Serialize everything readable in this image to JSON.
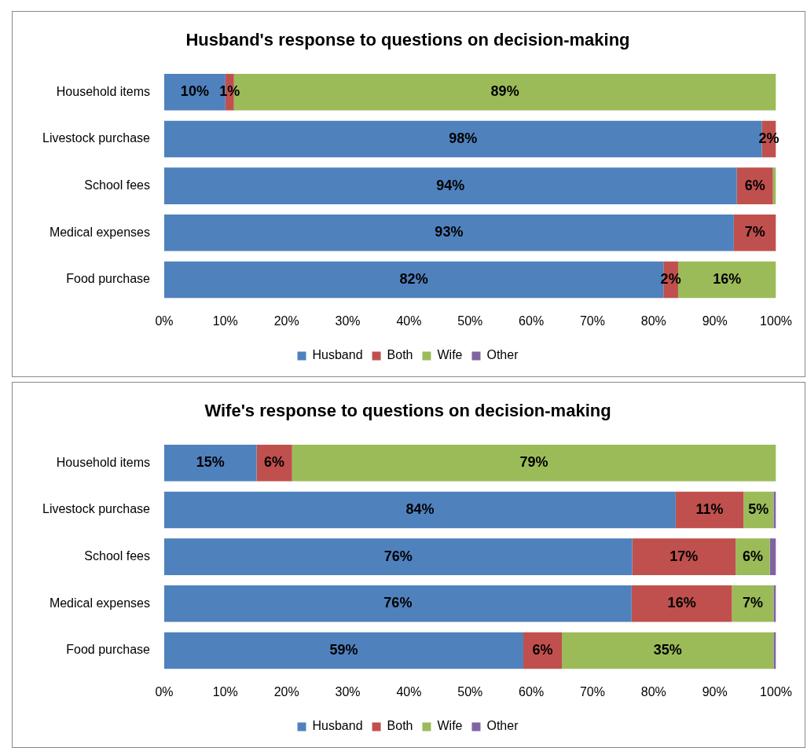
{
  "chart_data": [
    {
      "type": "bar",
      "orientation": "horizontal",
      "stacked": true,
      "title": "Husband's response to questions on decision-making",
      "categories": [
        "Household items",
        "Livestock purchase",
        "School fees",
        "Medical expenses",
        "Food purchase"
      ],
      "xlim": [
        0,
        100
      ],
      "xticks": [
        {
          "value": 0,
          "label": "0%"
        },
        {
          "value": 10,
          "label": "10%"
        },
        {
          "value": 20,
          "label": "20%"
        },
        {
          "value": 30,
          "label": "30%"
        },
        {
          "value": 40,
          "label": "40%"
        },
        {
          "value": 50,
          "label": "50%"
        },
        {
          "value": 60,
          "label": "60%"
        },
        {
          "value": 70,
          "label": "70%"
        },
        {
          "value": 80,
          "label": "80%"
        },
        {
          "value": 90,
          "label": "90%"
        },
        {
          "value": 100,
          "label": "100%"
        }
      ],
      "grid": false,
      "legend": "bottom",
      "series": [
        {
          "name": "Husband",
          "color": "#4f81bd",
          "values": [
            10,
            97.7,
            93.6,
            93.1,
            81.6
          ],
          "value_labels": [
            "10%",
            "98%",
            "94%",
            "93%",
            "82%"
          ]
        },
        {
          "name": "Both",
          "color": "#c0504d",
          "values": [
            1.4,
            2.3,
            5.9,
            6.9,
            2.4
          ],
          "value_labels": [
            "1%",
            "2%",
            "6%",
            "7%",
            "2%"
          ]
        },
        {
          "name": "Wife",
          "color": "#9bbb59",
          "values": [
            88.6,
            0,
            0.5,
            0,
            16
          ],
          "value_labels": [
            "89%",
            null,
            null,
            null,
            "16%"
          ]
        },
        {
          "name": "Other",
          "color": "#8064a2",
          "values": [
            0,
            0,
            0,
            0,
            0
          ],
          "value_labels": [
            null,
            null,
            null,
            null,
            null
          ]
        }
      ]
    },
    {
      "type": "bar",
      "orientation": "horizontal",
      "stacked": true,
      "title": "Wife's response to questions on decision-making",
      "categories": [
        "Household items",
        "Livestock purchase",
        "School fees",
        "Medical expenses",
        "Food purchase"
      ],
      "xlim": [
        0,
        100
      ],
      "xticks": [
        {
          "value": 0,
          "label": "0%"
        },
        {
          "value": 10,
          "label": "10%"
        },
        {
          "value": 20,
          "label": "20%"
        },
        {
          "value": 30,
          "label": "30%"
        },
        {
          "value": 40,
          "label": "40%"
        },
        {
          "value": 50,
          "label": "50%"
        },
        {
          "value": 60,
          "label": "60%"
        },
        {
          "value": 70,
          "label": "70%"
        },
        {
          "value": 80,
          "label": "80%"
        },
        {
          "value": 90,
          "label": "90%"
        },
        {
          "value": 100,
          "label": "100%"
        }
      ],
      "grid": false,
      "legend": "bottom",
      "series": [
        {
          "name": "Husband",
          "color": "#4f81bd",
          "values": [
            15.1,
            83.6,
            76.5,
            76.4,
            58.7
          ],
          "value_labels": [
            "15%",
            "84%",
            "76%",
            "76%",
            "59%"
          ]
        },
        {
          "name": "Both",
          "color": "#c0504d",
          "values": [
            5.8,
            11.1,
            16.9,
            16.4,
            6.3
          ],
          "value_labels": [
            "6%",
            "11%",
            "17%",
            "16%",
            "6%"
          ]
        },
        {
          "name": "Wife",
          "color": "#9bbb59",
          "values": [
            79.1,
            4.9,
            5.6,
            6.8,
            34.6
          ],
          "value_labels": [
            "79%",
            "5%",
            "6%",
            "7%",
            "35%"
          ]
        },
        {
          "name": "Other",
          "color": "#8064a2",
          "values": [
            0,
            0.4,
            1.0,
            0.4,
            0.4
          ],
          "value_labels": [
            null,
            null,
            null,
            null,
            null
          ]
        }
      ]
    }
  ]
}
